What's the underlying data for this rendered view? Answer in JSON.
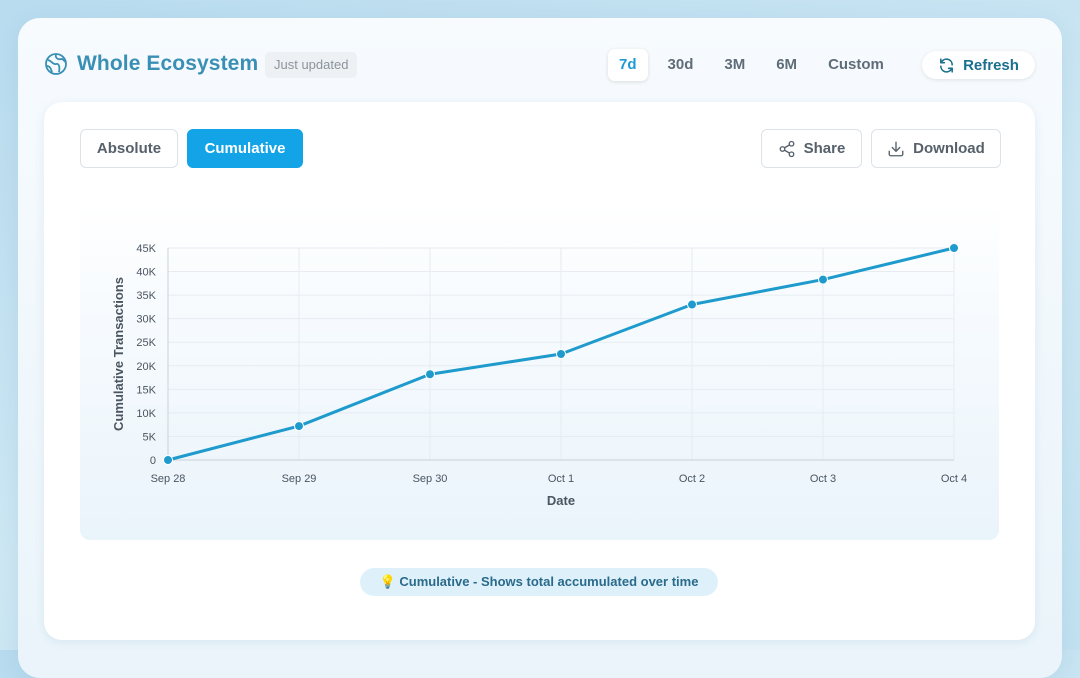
{
  "header": {
    "title": "Whole Ecosystem",
    "badge": "Just updated",
    "ranges": [
      "7d",
      "30d",
      "3M",
      "6M",
      "Custom"
    ],
    "active_range": "7d",
    "refresh_label": "Refresh"
  },
  "toolbar": {
    "absolute_label": "Absolute",
    "cumulative_label": "Cumulative",
    "share_label": "Share",
    "download_label": "Download"
  },
  "tip": {
    "icon": "lightbulb-icon",
    "emoji": "💡",
    "text": "Cumulative - Shows total accumulated over time"
  },
  "colors": {
    "accent": "#12a4e6",
    "line": "#1e9bcc",
    "title": "#3a8fb5"
  },
  "chart_data": {
    "type": "line",
    "title": "",
    "xlabel": "Date",
    "ylabel": "Cumulative Transactions",
    "categories": [
      "Sep 28",
      "Sep 29",
      "Sep 30",
      "Oct 1",
      "Oct 2",
      "Oct 3",
      "Oct 4"
    ],
    "series": [
      {
        "name": "Cumulative Transactions",
        "values": [
          0,
          7200,
          18200,
          22500,
          33000,
          38300,
          45000
        ]
      }
    ],
    "ylim": [
      0,
      45000
    ],
    "yticks": [
      0,
      5000,
      10000,
      15000,
      20000,
      25000,
      30000,
      35000,
      40000,
      45000
    ],
    "ytick_labels": [
      "0",
      "5K",
      "10K",
      "15K",
      "20K",
      "25K",
      "30K",
      "35K",
      "40K",
      "45K"
    ],
    "grid": true
  }
}
